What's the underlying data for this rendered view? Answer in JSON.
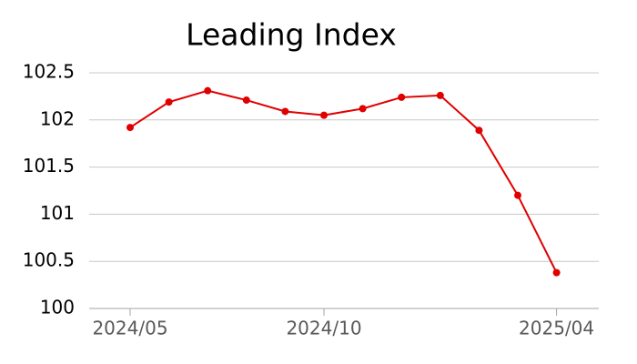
{
  "chart_data": {
    "type": "line",
    "title": "Leading Index",
    "categories": [
      "2024/05",
      null,
      null,
      null,
      null,
      "2024/10",
      null,
      null,
      null,
      null,
      null,
      "2025/04"
    ],
    "values": [
      101.92,
      102.19,
      102.31,
      102.21,
      102.09,
      102.05,
      102.12,
      102.24,
      102.26,
      101.89,
      101.2,
      100.38
    ],
    "color": "#e00000",
    "ylim": [
      100,
      102.5
    ],
    "yticks": [
      100,
      100.5,
      101,
      101.5,
      102,
      102.5
    ],
    "grid": true
  }
}
